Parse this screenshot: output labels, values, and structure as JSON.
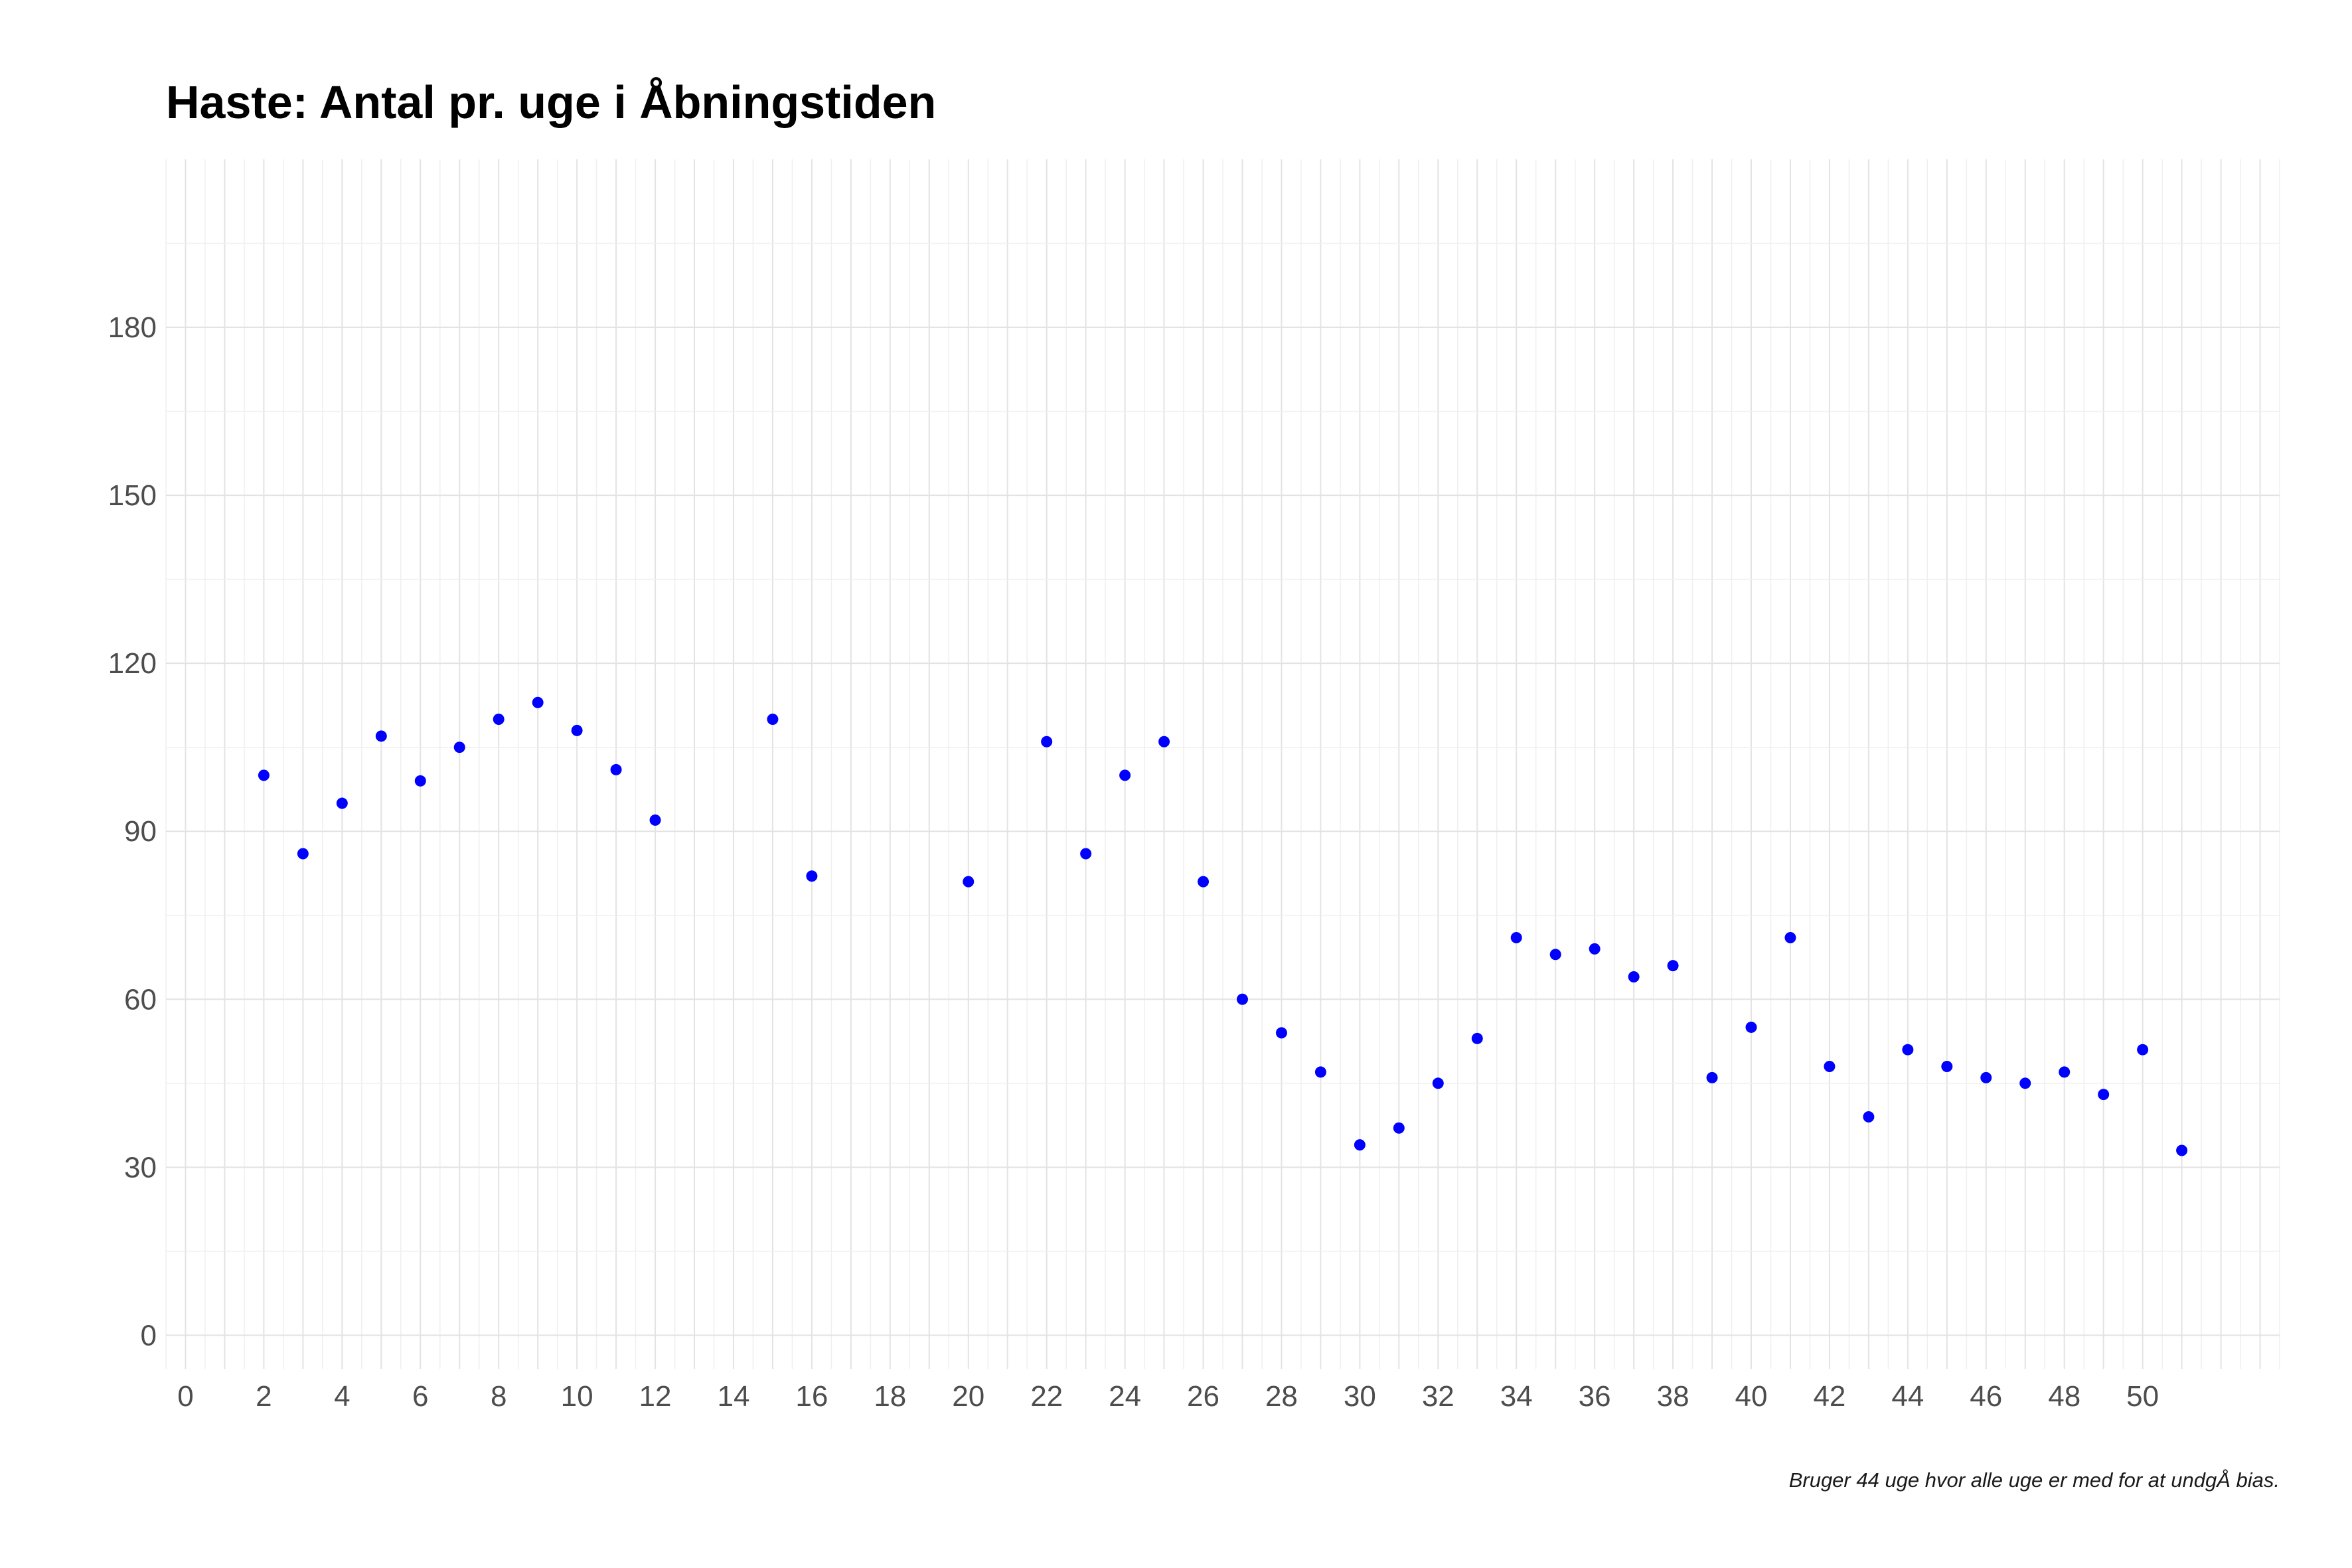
{
  "chart_data": {
    "type": "scatter",
    "title": "Haste: Antal pr. uge i Åbningstiden",
    "caption": "Bruger 44 uge hvor alle uge er med for at undgÅ bias.",
    "xlabel": "",
    "ylabel": "",
    "xlim": [
      -0.5,
      53.5
    ],
    "ylim": [
      -6,
      210
    ],
    "x_ticks": [
      0,
      2,
      4,
      6,
      8,
      10,
      12,
      14,
      16,
      18,
      20,
      22,
      24,
      26,
      28,
      30,
      32,
      34,
      36,
      38,
      40,
      42,
      44,
      46,
      48,
      50
    ],
    "y_ticks": [
      0,
      30,
      60,
      90,
      120,
      150,
      180
    ],
    "grid": true,
    "legend": "none",
    "point_color": "#0000ff",
    "series": [
      {
        "x": [
          2,
          3,
          4,
          5,
          6,
          7,
          8,
          9,
          10,
          11,
          12,
          15,
          16,
          20,
          22,
          23,
          24,
          25,
          26,
          27,
          28,
          29,
          30,
          31,
          32,
          33,
          34,
          35,
          36,
          37,
          38,
          39,
          40,
          41,
          42,
          43,
          44,
          45,
          46,
          47,
          48,
          49,
          50,
          51
        ],
        "y": [
          100,
          86,
          95,
          107,
          99,
          105,
          110,
          113,
          108,
          101,
          92,
          110,
          82,
          81,
          106,
          86,
          100,
          106,
          81,
          60,
          54,
          47,
          34,
          37,
          45,
          53,
          71,
          68,
          69,
          64,
          66,
          46,
          55,
          71,
          48,
          39,
          51,
          48,
          46,
          45,
          47,
          43,
          51,
          33
        ]
      }
    ]
  }
}
